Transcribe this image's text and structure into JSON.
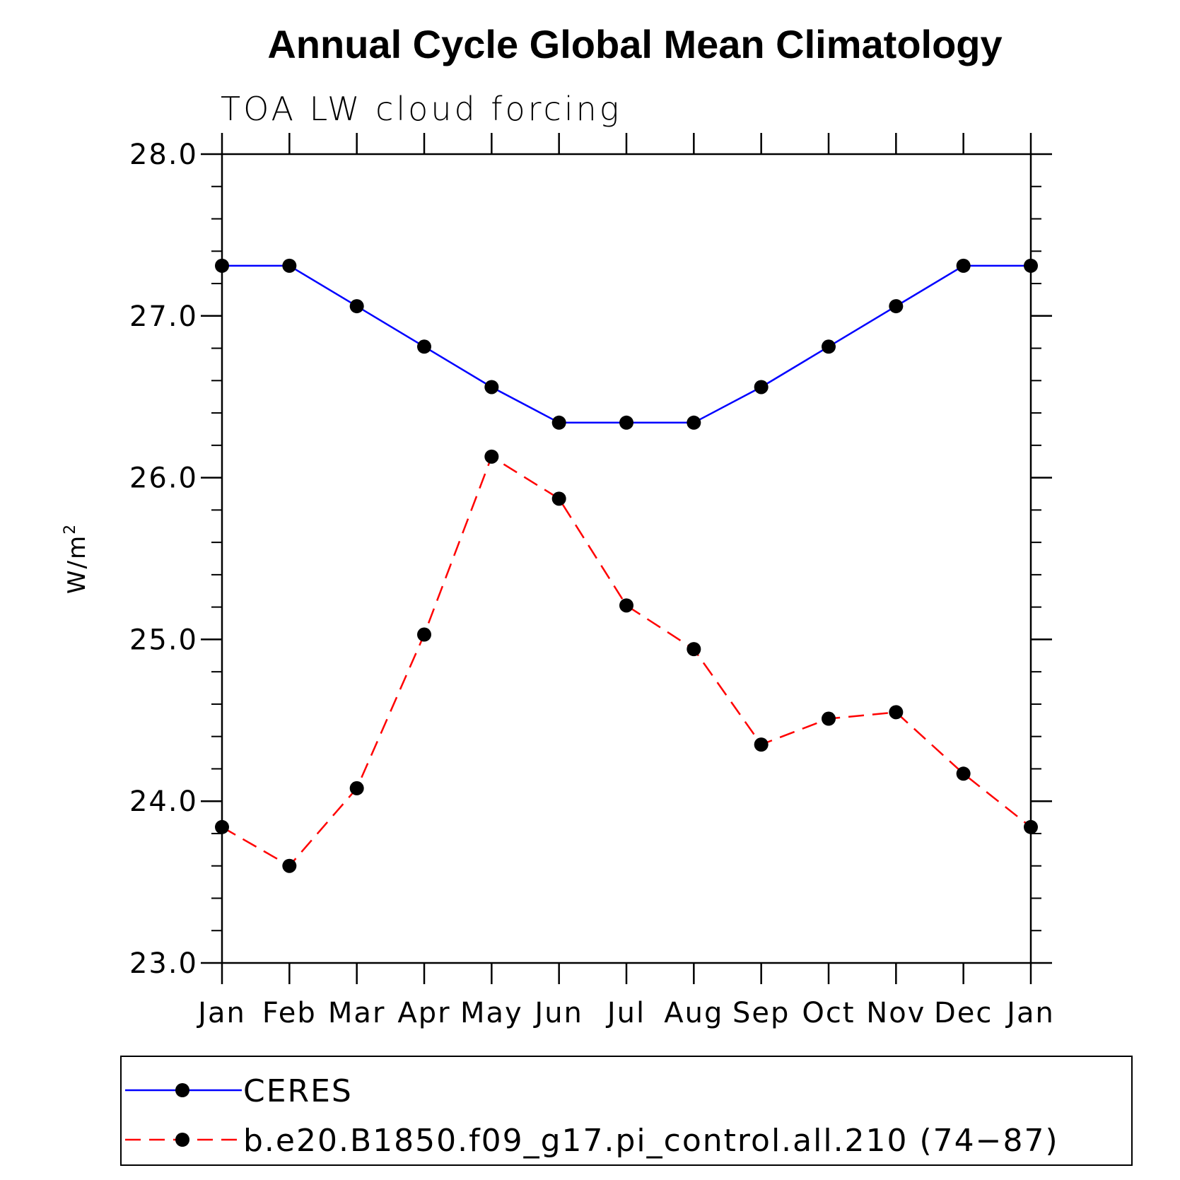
{
  "chart_data": {
    "type": "line",
    "title": "Annual Cycle Global Mean Climatology",
    "subtitle": "TOA LW cloud forcing",
    "ylabel": "W/m",
    "ylabel_sup": "2",
    "xlabel": "",
    "categories": [
      "Jan",
      "Feb",
      "Mar",
      "Apr",
      "May",
      "Jun",
      "Jul",
      "Aug",
      "Sep",
      "Oct",
      "Nov",
      "Dec",
      "Jan"
    ],
    "ylim": [
      23.0,
      28.0
    ],
    "yticks": [
      23.0,
      24.0,
      25.0,
      26.0,
      27.0,
      28.0
    ],
    "ytick_labels": [
      "23.0",
      "24.0",
      "25.0",
      "26.0",
      "27.0",
      "28.0"
    ],
    "grid": false,
    "legend_position": "bottom",
    "series": [
      {
        "name": "CERES",
        "color": "#0000ff",
        "dash": "solid",
        "marker": "circle",
        "values": [
          27.31,
          27.31,
          27.06,
          26.81,
          26.56,
          26.34,
          26.34,
          26.34,
          26.56,
          26.81,
          27.06,
          27.31,
          27.31
        ]
      },
      {
        "name": "b.e20.B1850.f09_g17.pi_control.all.210 (74−87)",
        "color": "#ff0000",
        "dash": "dashed",
        "marker": "circle",
        "values": [
          23.84,
          23.6,
          24.08,
          25.03,
          26.13,
          25.87,
          25.21,
          24.94,
          24.35,
          24.51,
          24.55,
          24.17,
          23.84
        ]
      }
    ]
  }
}
